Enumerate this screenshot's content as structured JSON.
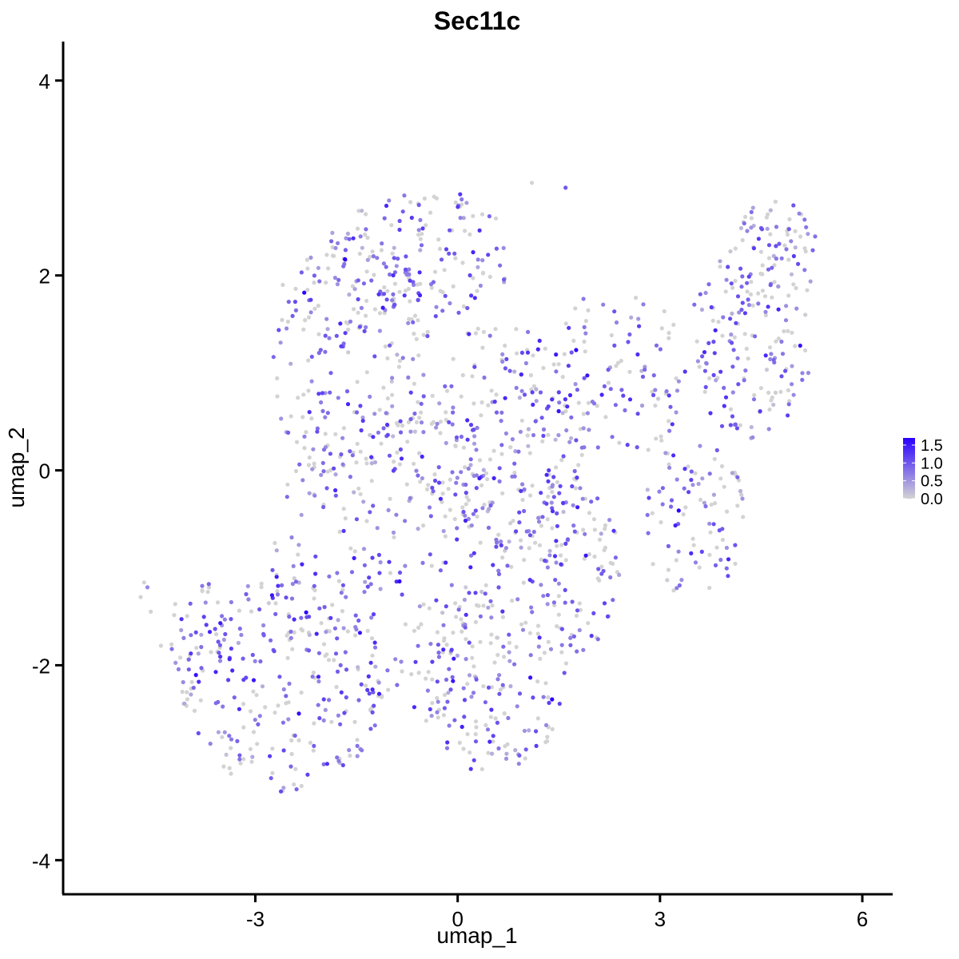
{
  "chart_data": {
    "type": "scatter",
    "title": "Sec11c",
    "xlabel": "umap_1",
    "ylabel": "umap_2",
    "xlim": [
      -5.85,
      6.45
    ],
    "ylim": [
      -4.35,
      4.4
    ],
    "xticks": [
      -3,
      0,
      3,
      6
    ],
    "yticks": [
      -4,
      -2,
      0,
      2,
      4
    ],
    "xtick_labels": [
      "-3",
      "0",
      "3",
      "6"
    ],
    "ytick_labels": [
      "-4",
      "-2",
      "0",
      "2",
      "4"
    ],
    "grid": false,
    "colorbar": {
      "placement": "right",
      "min": 0.0,
      "max": 1.7,
      "ticks": [
        0.0,
        0.5,
        1.0,
        1.5
      ],
      "tick_labels": [
        "0.0",
        "0.5",
        "1.0",
        "1.5"
      ],
      "low_color": "#d3d3d3",
      "high_color": "#2a00ff"
    },
    "cells": {
      "description_free": true,
      "n": 1850,
      "seed": 20240611,
      "regions": [
        {
          "cx": -2.6,
          "cy": -2.2,
          "rx": 1.5,
          "ry": 1.1,
          "w": 3.5
        },
        {
          "cx": -1.0,
          "cy": -1.0,
          "rx": 1.8,
          "ry": 1.6,
          "w": 4.0
        },
        {
          "cx": 0.5,
          "cy": -2.2,
          "rx": 1.1,
          "ry": 0.9,
          "w": 2.0
        },
        {
          "cx": -1.6,
          "cy": 1.2,
          "rx": 1.2,
          "ry": 1.3,
          "w": 3.0
        },
        {
          "cx": -0.5,
          "cy": 2.2,
          "rx": 1.3,
          "ry": 0.7,
          "w": 2.0
        },
        {
          "cx": 0.6,
          "cy": 0.3,
          "rx": 1.3,
          "ry": 1.2,
          "w": 3.0
        },
        {
          "cx": 1.5,
          "cy": -1.0,
          "rx": 0.9,
          "ry": 1.0,
          "w": 2.0
        },
        {
          "cx": 2.4,
          "cy": 1.0,
          "rx": 1.0,
          "ry": 0.9,
          "w": 1.5
        },
        {
          "cx": 3.5,
          "cy": -0.5,
          "rx": 0.8,
          "ry": 0.8,
          "w": 1.0
        },
        {
          "cx": 4.3,
          "cy": 1.3,
          "rx": 0.9,
          "ry": 1.0,
          "w": 2.2
        },
        {
          "cx": 4.7,
          "cy": 2.2,
          "rx": 0.6,
          "ry": 0.6,
          "w": 1.0
        },
        {
          "cx": -3.8,
          "cy": -1.6,
          "rx": 0.5,
          "ry": 0.6,
          "w": 0.5
        }
      ],
      "outliers": [
        {
          "x": -4.7,
          "y": -1.3,
          "v": 0.0
        },
        {
          "x": -4.6,
          "y": -1.2,
          "v": 0.6
        },
        {
          "x": -4.65,
          "y": -1.15,
          "v": 0.0
        },
        {
          "x": -4.55,
          "y": -1.45,
          "v": 0.0
        },
        {
          "x": -4.4,
          "y": -1.8,
          "v": 0.0
        },
        {
          "x": 1.6,
          "y": 2.9,
          "v": 1.0
        },
        {
          "x": 1.1,
          "y": 2.95,
          "v": 0.0
        },
        {
          "x": 1.4,
          "y": -2.35,
          "v": 1.7
        },
        {
          "x": 5.3,
          "y": 2.4,
          "v": 0.8
        },
        {
          "x": 5.2,
          "y": 1.0,
          "v": 0.6
        }
      ]
    }
  }
}
